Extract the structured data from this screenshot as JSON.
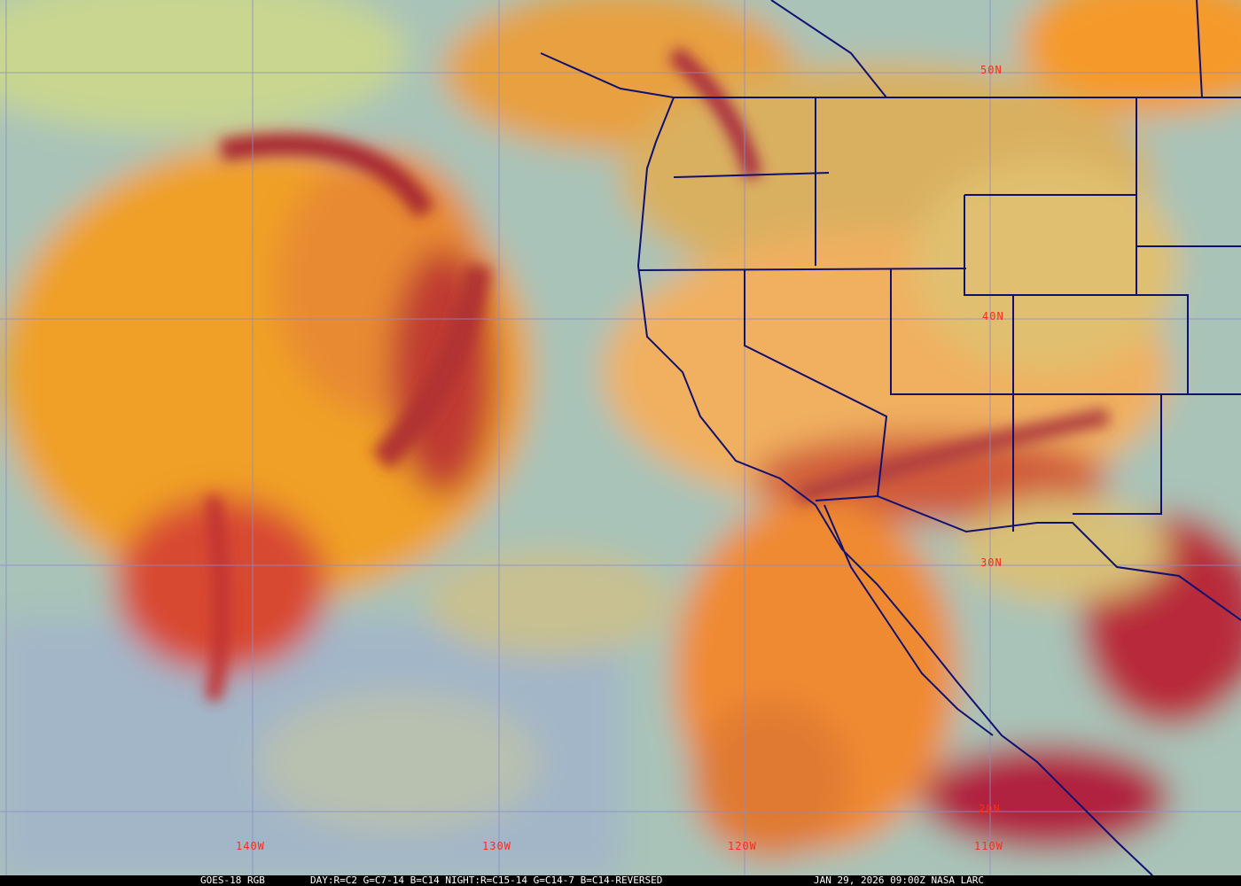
{
  "caption": {
    "satellite": "GOES-18 RGB",
    "recipe": "DAY:R=C2 G=C7-14 B=C14 NIGHT:R=C15-14 G=C14-7 B=C14-REVERSED",
    "timestamp": "JAN 29, 2026 09:00Z NASA LARC"
  },
  "grid": {
    "latitudes": [
      "50N",
      "40N",
      "30N",
      "20N"
    ],
    "longitudes": [
      "140W",
      "130W",
      "120W",
      "110W"
    ],
    "line_color": "#8c8cc8",
    "label_color": "#ff2a1a"
  },
  "colors": {
    "ocean_clear": "#a9c3b8",
    "high_cloud": "#f0a030",
    "cold_cloud": "#b02030",
    "boundaries": "#101070"
  }
}
